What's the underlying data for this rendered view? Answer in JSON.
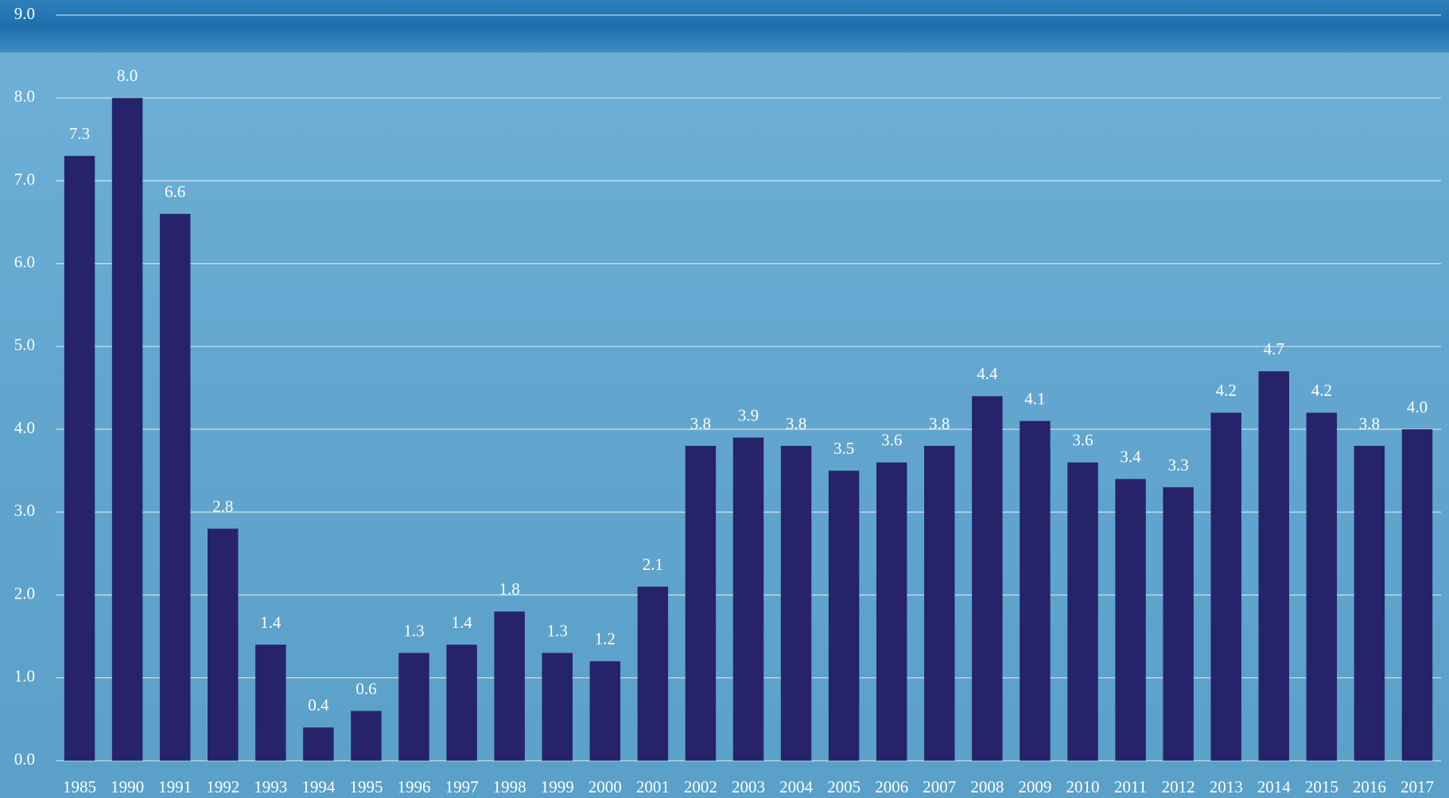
{
  "chart_data": {
    "type": "bar",
    "categories": [
      "1985",
      "1990",
      "1991",
      "1992",
      "1993",
      "1994",
      "1995",
      "1996",
      "1997",
      "1998",
      "1999",
      "2000",
      "2001",
      "2002",
      "2003",
      "2004",
      "2005",
      "2006",
      "2007",
      "2008",
      "2009",
      "2010",
      "2011",
      "2012",
      "2013",
      "2014",
      "2015",
      "2016",
      "2017"
    ],
    "values": [
      7.3,
      8.0,
      6.6,
      2.8,
      1.4,
      0.4,
      0.6,
      1.3,
      1.4,
      1.8,
      1.3,
      1.2,
      2.1,
      3.8,
      3.9,
      3.8,
      3.5,
      3.6,
      3.8,
      4.4,
      4.1,
      3.6,
      3.4,
      3.3,
      4.2,
      4.7,
      4.2,
      3.8,
      4.0
    ],
    "value_labels": [
      "7.3",
      "8.0",
      "6.6",
      "2.8",
      "1.4",
      "0.4",
      "0.6",
      "1.3",
      "1.4",
      "1.8",
      "1.3",
      "1.2",
      "2.1",
      "3.8",
      "3.9",
      "3.8",
      "3.5",
      "3.6",
      "3.8",
      "4.4",
      "4.1",
      "3.6",
      "3.4",
      "3.3",
      "4.2",
      "4.7",
      "4.2",
      "3.8",
      "4.0"
    ],
    "color": "#26236b",
    "ylim": [
      0,
      9
    ],
    "yticks": [
      {
        "value": 0,
        "label": "0.0"
      },
      {
        "value": 1,
        "label": "1.0"
      },
      {
        "value": 2,
        "label": "2.0"
      },
      {
        "value": 3,
        "label": "3.0"
      },
      {
        "value": 4,
        "label": "4.0"
      },
      {
        "value": 5,
        "label": "5.0"
      },
      {
        "value": 6,
        "label": "6.0"
      },
      {
        "value": 7,
        "label": "7.0"
      },
      {
        "value": 8,
        "label": "8.0"
      },
      {
        "value": 9,
        "label": "9.0"
      }
    ],
    "grid": true
  }
}
